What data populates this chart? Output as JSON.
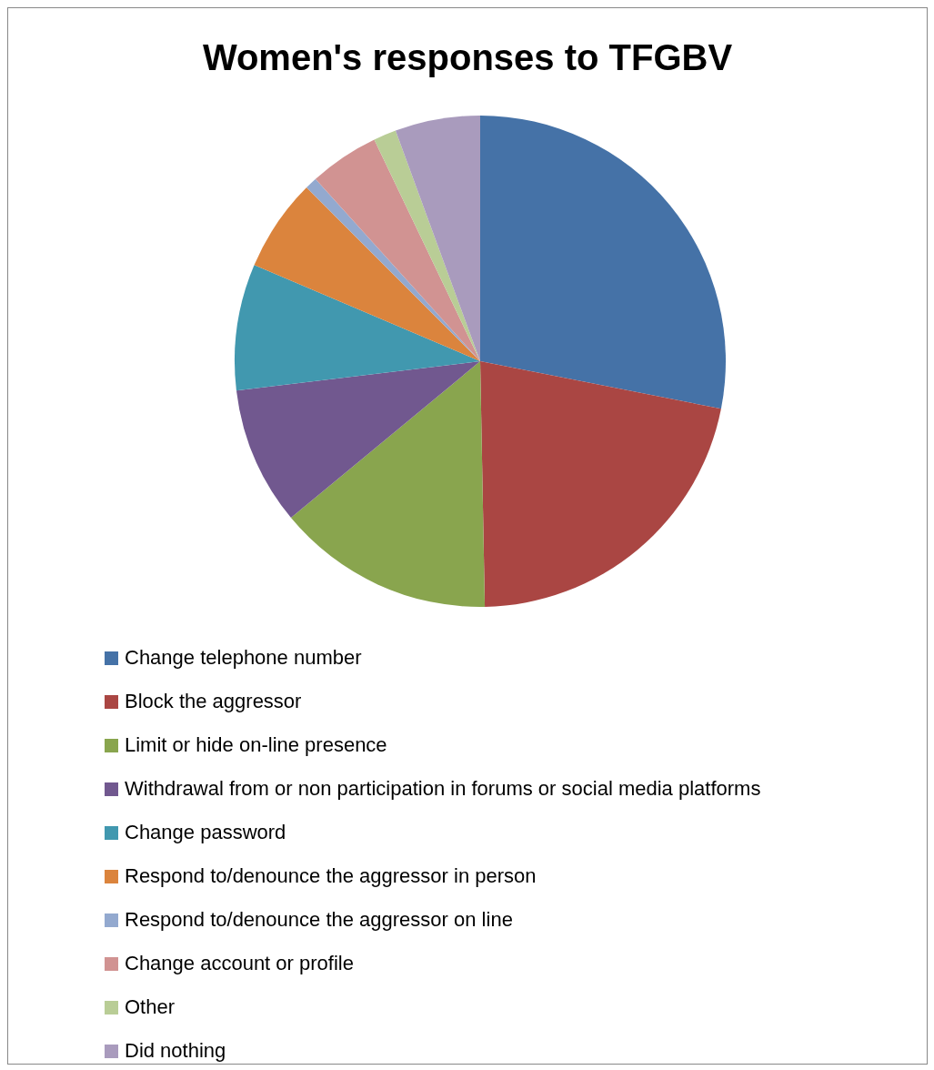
{
  "chart_data": {
    "type": "pie",
    "title": "Women's responses to TFGBV",
    "categories": [
      "Change telephone number",
      "Block the aggressor",
      "Limit or hide on-line presence",
      "Withdrawal from or non participation in forums or social media platforms",
      "Change password",
      "Respond to/denounce the aggressor in person",
      "Respond to/denounce the aggressor on line",
      "Change account or profile",
      "Other",
      "Did nothing"
    ],
    "values": [
      28.1,
      21.6,
      14.3,
      9.1,
      8.3,
      6.1,
      0.8,
      4.6,
      1.5,
      5.6
    ],
    "colors": [
      "#4572a7",
      "#aa4643",
      "#89a54e",
      "#71588f",
      "#4198af",
      "#db843d",
      "#93a9cf",
      "#d19392",
      "#b9cd96",
      "#a99bbd"
    ],
    "legend": "bottom"
  }
}
